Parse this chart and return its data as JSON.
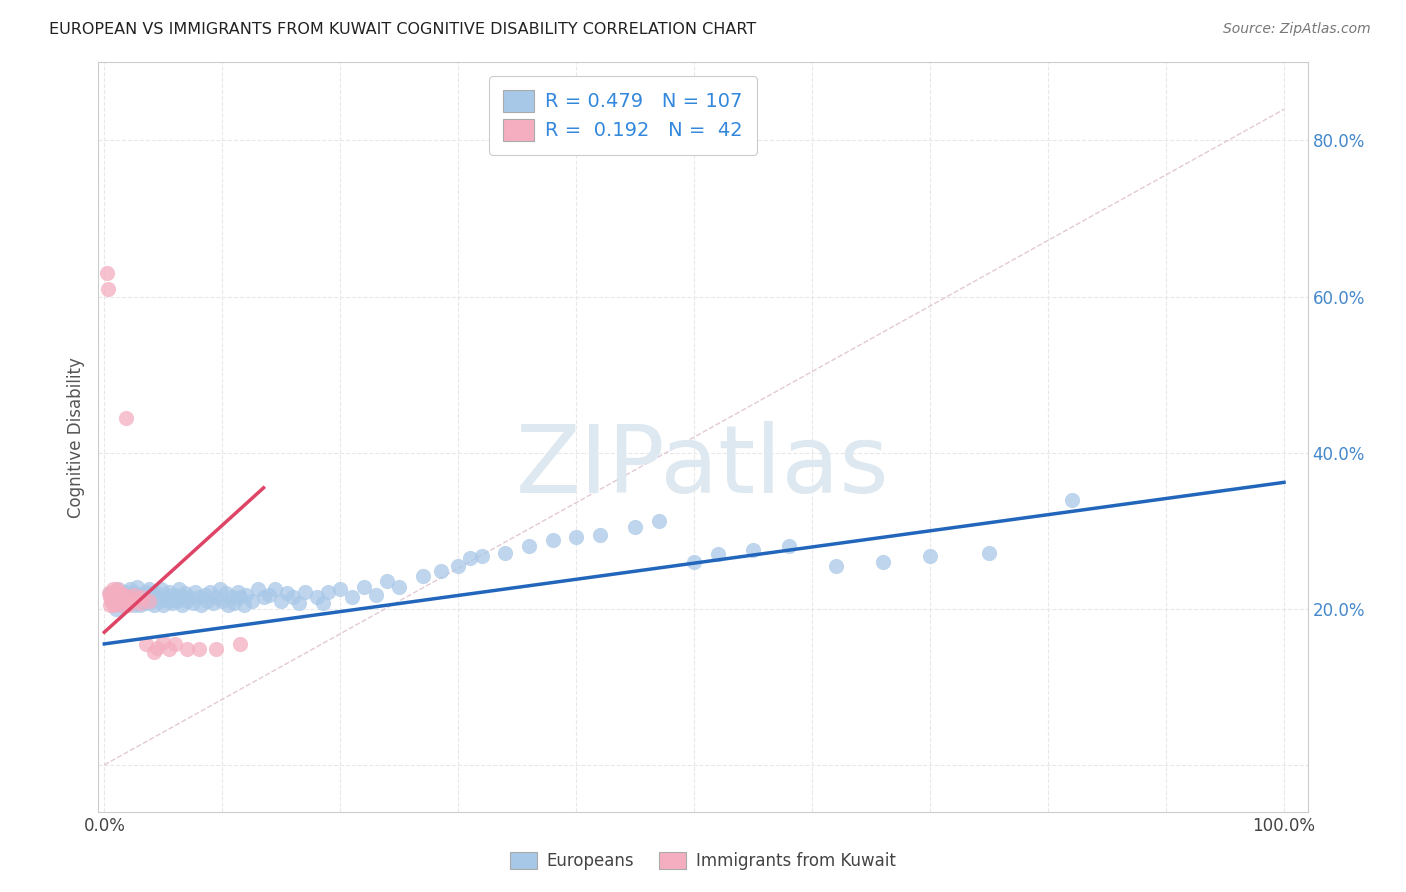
{
  "title": "EUROPEAN VS IMMIGRANTS FROM KUWAIT COGNITIVE DISABILITY CORRELATION CHART",
  "source": "Source: ZipAtlas.com",
  "ylabel": "Cognitive Disability",
  "xlim": [
    -0.005,
    1.02
  ],
  "ylim": [
    -0.06,
    0.9
  ],
  "xtick_positions": [
    0.0,
    0.1,
    0.2,
    0.3,
    0.4,
    0.5,
    0.6,
    0.7,
    0.8,
    0.9,
    1.0
  ],
  "xtick_labels": [
    "0.0%",
    "",
    "",
    "",
    "",
    "",
    "",
    "",
    "",
    "",
    "100.0%"
  ],
  "ytick_positions": [
    0.0,
    0.2,
    0.4,
    0.6,
    0.8
  ],
  "ytick_labels_right": [
    "",
    "20.0%",
    "40.0%",
    "60.0%",
    "80.0%"
  ],
  "blue_R": 0.479,
  "blue_N": 107,
  "pink_R": 0.192,
  "pink_N": 42,
  "blue_scatter_color": "#a8c8e8",
  "pink_scatter_color": "#f4aec0",
  "blue_line_color": "#2266bb",
  "pink_line_color": "#dd4466",
  "diag_line_color": "#ddbbcc",
  "grid_color": "#e8e8e8",
  "grid_linestyle": "--",
  "title_color": "#222222",
  "source_color": "#777777",
  "right_tick_color": "#4488cc",
  "watermark_text": "ZIPatlas",
  "watermark_color": "#dde8f0",
  "legend_label_blue": "Europeans",
  "legend_label_pink": "Immigrants from Kuwait",
  "legend_text_color": "#3388dd",
  "blue_line_x0": 0.0,
  "blue_line_x1": 1.0,
  "blue_line_y0": 0.155,
  "blue_line_y1": 0.362,
  "pink_line_x0": 0.0,
  "pink_line_x1": 0.135,
  "pink_line_y0": 0.17,
  "pink_line_y1": 0.355,
  "blue_x": [
    0.005,
    0.008,
    0.01,
    0.012,
    0.012,
    0.015,
    0.015,
    0.017,
    0.018,
    0.02,
    0.02,
    0.022,
    0.022,
    0.025,
    0.025,
    0.026,
    0.028,
    0.028,
    0.03,
    0.03,
    0.032,
    0.033,
    0.035,
    0.035,
    0.037,
    0.038,
    0.04,
    0.04,
    0.042,
    0.043,
    0.045,
    0.047,
    0.048,
    0.05,
    0.05,
    0.052,
    0.055,
    0.055,
    0.057,
    0.058,
    0.06,
    0.062,
    0.063,
    0.065,
    0.066,
    0.068,
    0.07,
    0.072,
    0.075,
    0.077,
    0.08,
    0.082,
    0.085,
    0.087,
    0.09,
    0.092,
    0.095,
    0.098,
    0.1,
    0.103,
    0.105,
    0.108,
    0.11,
    0.113,
    0.115,
    0.118,
    0.12,
    0.125,
    0.13,
    0.135,
    0.14,
    0.145,
    0.15,
    0.155,
    0.16,
    0.165,
    0.17,
    0.18,
    0.185,
    0.19,
    0.2,
    0.21,
    0.22,
    0.23,
    0.24,
    0.25,
    0.27,
    0.285,
    0.3,
    0.31,
    0.32,
    0.34,
    0.36,
    0.38,
    0.4,
    0.42,
    0.45,
    0.47,
    0.5,
    0.52,
    0.55,
    0.58,
    0.62,
    0.66,
    0.7,
    0.75,
    0.82
  ],
  "blue_y": [
    0.22,
    0.21,
    0.2,
    0.215,
    0.225,
    0.205,
    0.218,
    0.212,
    0.222,
    0.208,
    0.218,
    0.21,
    0.225,
    0.215,
    0.205,
    0.22,
    0.212,
    0.228,
    0.215,
    0.205,
    0.218,
    0.21,
    0.222,
    0.208,
    0.215,
    0.225,
    0.21,
    0.22,
    0.205,
    0.215,
    0.22,
    0.21,
    0.225,
    0.215,
    0.205,
    0.218,
    0.21,
    0.222,
    0.208,
    0.215,
    0.218,
    0.21,
    0.225,
    0.215,
    0.205,
    0.22,
    0.21,
    0.215,
    0.208,
    0.222,
    0.215,
    0.205,
    0.218,
    0.21,
    0.222,
    0.208,
    0.215,
    0.225,
    0.21,
    0.22,
    0.205,
    0.215,
    0.208,
    0.222,
    0.215,
    0.205,
    0.218,
    0.21,
    0.225,
    0.215,
    0.218,
    0.225,
    0.21,
    0.22,
    0.215,
    0.208,
    0.222,
    0.215,
    0.208,
    0.222,
    0.225,
    0.215,
    0.228,
    0.218,
    0.235,
    0.228,
    0.242,
    0.248,
    0.255,
    0.265,
    0.268,
    0.272,
    0.28,
    0.288,
    0.292,
    0.295,
    0.305,
    0.312,
    0.26,
    0.27,
    0.275,
    0.28,
    0.255,
    0.26,
    0.268,
    0.272,
    0.34
  ],
  "pink_x": [
    0.002,
    0.003,
    0.004,
    0.005,
    0.005,
    0.006,
    0.006,
    0.007,
    0.007,
    0.008,
    0.008,
    0.009,
    0.01,
    0.01,
    0.011,
    0.012,
    0.012,
    0.013,
    0.014,
    0.015,
    0.015,
    0.016,
    0.017,
    0.018,
    0.02,
    0.02,
    0.022,
    0.025,
    0.028,
    0.03,
    0.032,
    0.035,
    0.038,
    0.042,
    0.045,
    0.05,
    0.055,
    0.06,
    0.07,
    0.08,
    0.095,
    0.115
  ],
  "pink_y": [
    0.63,
    0.61,
    0.22,
    0.215,
    0.205,
    0.21,
    0.218,
    0.225,
    0.208,
    0.215,
    0.205,
    0.218,
    0.222,
    0.21,
    0.225,
    0.215,
    0.208,
    0.22,
    0.215,
    0.212,
    0.205,
    0.21,
    0.218,
    0.445,
    0.215,
    0.205,
    0.21,
    0.218,
    0.212,
    0.208,
    0.215,
    0.155,
    0.21,
    0.145,
    0.15,
    0.158,
    0.148,
    0.155,
    0.148,
    0.148,
    0.148,
    0.155
  ]
}
